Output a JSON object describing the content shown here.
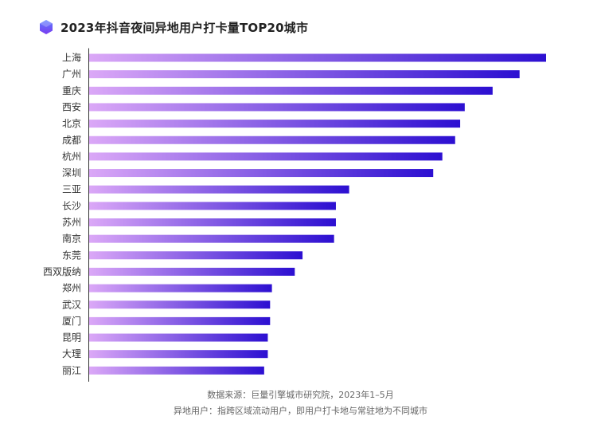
{
  "title": "2023年抖音夜间异地用户打卡量TOP20城市",
  "logo_icon": "hexagon-logo-icon",
  "colors": {
    "bar_start": "#dba8f7",
    "bar_end": "#2c0fd1",
    "axis": "#333333",
    "logo_top": "#5b7cff",
    "logo_bottom": "#7a3cf0"
  },
  "chart_data": {
    "type": "bar",
    "orientation": "horizontal",
    "title": "2023年抖音夜间异地用户打卡量TOP20城市",
    "categories": [
      "上海",
      "广州",
      "重庆",
      "西安",
      "北京",
      "成都",
      "杭州",
      "深圳",
      "三亚",
      "长沙",
      "苏州",
      "南京",
      "东莞",
      "西双版纳",
      "郑州",
      "武汉",
      "厦门",
      "昆明",
      "大理",
      "丽江"
    ],
    "values": [
      100,
      94.2,
      88.3,
      82.2,
      81.2,
      80.1,
      77.3,
      75.3,
      56.9,
      54.0,
      54.0,
      53.6,
      46.7,
      45.0,
      40.0,
      39.6,
      39.6,
      39.1,
      39.1,
      38.3
    ],
    "xlim": [
      0,
      100
    ],
    "grid": false,
    "legend": "none"
  },
  "notes": {
    "source": "数据来源：巨量引擎城市研究院，2023年1–5月",
    "definition": "异地用户：指跨区域流动用户，即用户打卡地与常驻地为不同城市"
  }
}
